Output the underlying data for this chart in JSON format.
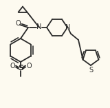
{
  "bg_color": "#FDFAF0",
  "line_color": "#2a2a2a",
  "line_width": 1.3,
  "figsize": [
    1.6,
    1.57
  ],
  "dpi": 100,
  "xlim": [
    0,
    160
  ],
  "ylim": [
    0,
    157
  ]
}
